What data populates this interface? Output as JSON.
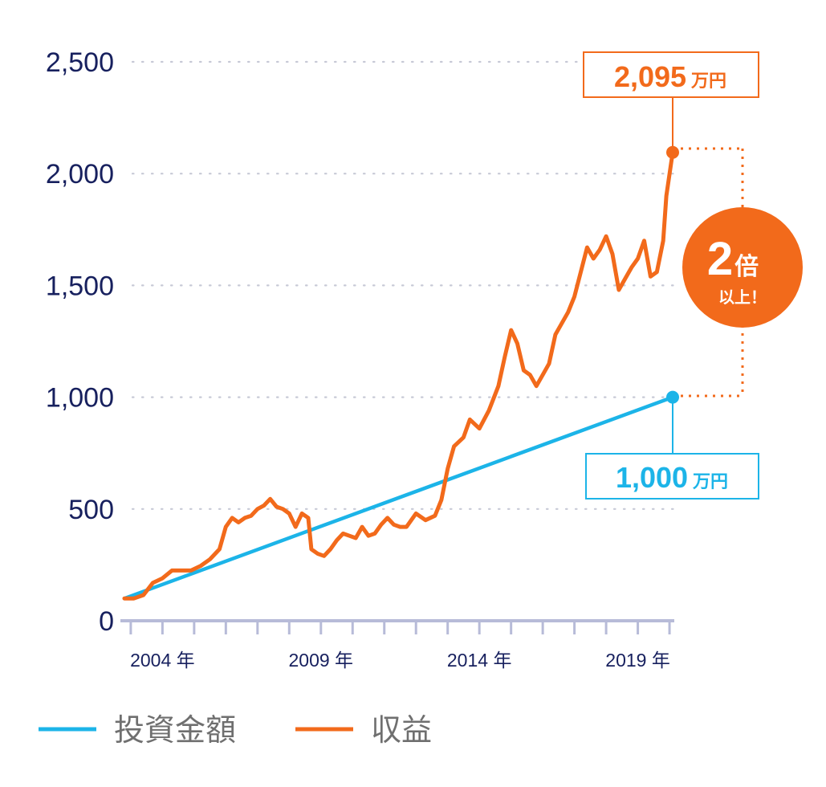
{
  "chart_data": {
    "type": "line",
    "title": "",
    "xlabel": "",
    "ylabel": "",
    "ylim": [
      0,
      2500
    ],
    "yticks": [
      "0",
      "500",
      "1,000",
      "1,500",
      "2,000",
      "2,500"
    ],
    "ytick_values": [
      0,
      500,
      1000,
      1500,
      2000,
      2500
    ],
    "xticks": [
      "2004 年",
      "2009 年",
      "2014 年",
      "2019 年"
    ],
    "xtick_values": [
      2004,
      2009,
      2014,
      2019
    ],
    "xlim": [
      2003.1,
      2020.4
    ],
    "grid": "dotted-horizontal",
    "legend_position": "bottom-left",
    "series": [
      {
        "name": "投資金額",
        "color": "#1cb4e8",
        "points": [
          [
            2003.1,
            100
          ],
          [
            2020.4,
            1000
          ]
        ]
      },
      {
        "name": "収益",
        "color": "#f26a1b",
        "points": [
          [
            2003.1,
            100
          ],
          [
            2003.4,
            100
          ],
          [
            2003.7,
            115
          ],
          [
            2004.0,
            170
          ],
          [
            2004.3,
            190
          ],
          [
            2004.6,
            225
          ],
          [
            2004.9,
            225
          ],
          [
            2005.2,
            225
          ],
          [
            2005.5,
            245
          ],
          [
            2005.8,
            275
          ],
          [
            2006.1,
            320
          ],
          [
            2006.3,
            420
          ],
          [
            2006.5,
            460
          ],
          [
            2006.7,
            440
          ],
          [
            2006.9,
            460
          ],
          [
            2007.1,
            470
          ],
          [
            2007.3,
            500
          ],
          [
            2007.5,
            515
          ],
          [
            2007.7,
            545
          ],
          [
            2007.9,
            510
          ],
          [
            2008.1,
            500
          ],
          [
            2008.3,
            480
          ],
          [
            2008.5,
            420
          ],
          [
            2008.7,
            480
          ],
          [
            2008.9,
            460
          ],
          [
            2009.0,
            320
          ],
          [
            2009.2,
            300
          ],
          [
            2009.4,
            290
          ],
          [
            2009.6,
            320
          ],
          [
            2009.8,
            360
          ],
          [
            2010.0,
            390
          ],
          [
            2010.2,
            380
          ],
          [
            2010.4,
            370
          ],
          [
            2010.6,
            420
          ],
          [
            2010.8,
            380
          ],
          [
            2011.0,
            390
          ],
          [
            2011.2,
            430
          ],
          [
            2011.4,
            460
          ],
          [
            2011.6,
            430
          ],
          [
            2011.8,
            420
          ],
          [
            2012.0,
            420
          ],
          [
            2012.3,
            480
          ],
          [
            2012.6,
            450
          ],
          [
            2012.9,
            470
          ],
          [
            2013.1,
            540
          ],
          [
            2013.3,
            680
          ],
          [
            2013.5,
            780
          ],
          [
            2013.8,
            820
          ],
          [
            2014.0,
            900
          ],
          [
            2014.3,
            860
          ],
          [
            2014.6,
            940
          ],
          [
            2014.9,
            1050
          ],
          [
            2015.1,
            1180
          ],
          [
            2015.3,
            1300
          ],
          [
            2015.5,
            1240
          ],
          [
            2015.7,
            1120
          ],
          [
            2015.9,
            1100
          ],
          [
            2016.1,
            1050
          ],
          [
            2016.3,
            1100
          ],
          [
            2016.5,
            1150
          ],
          [
            2016.7,
            1280
          ],
          [
            2016.9,
            1330
          ],
          [
            2017.1,
            1380
          ],
          [
            2017.3,
            1450
          ],
          [
            2017.5,
            1560
          ],
          [
            2017.7,
            1670
          ],
          [
            2017.9,
            1620
          ],
          [
            2018.1,
            1660
          ],
          [
            2018.3,
            1720
          ],
          [
            2018.5,
            1640
          ],
          [
            2018.7,
            1480
          ],
          [
            2018.9,
            1530
          ],
          [
            2019.1,
            1580
          ],
          [
            2019.3,
            1620
          ],
          [
            2019.5,
            1700
          ],
          [
            2019.7,
            1540
          ],
          [
            2019.9,
            1560
          ],
          [
            2020.1,
            1700
          ],
          [
            2020.2,
            1900
          ],
          [
            2020.4,
            2095
          ]
        ]
      }
    ],
    "annotations": {
      "end_value_profit": {
        "value": "2,095",
        "unit": "万円",
        "year": 2020.4,
        "y": 2095
      },
      "end_value_invest": {
        "value": "1,000",
        "unit": "万円",
        "year": 2020.4,
        "y": 1000
      },
      "badge": {
        "big": "2",
        "suffix": "倍",
        "line2": "以上！",
        "color": "#f26a1b"
      }
    }
  }
}
